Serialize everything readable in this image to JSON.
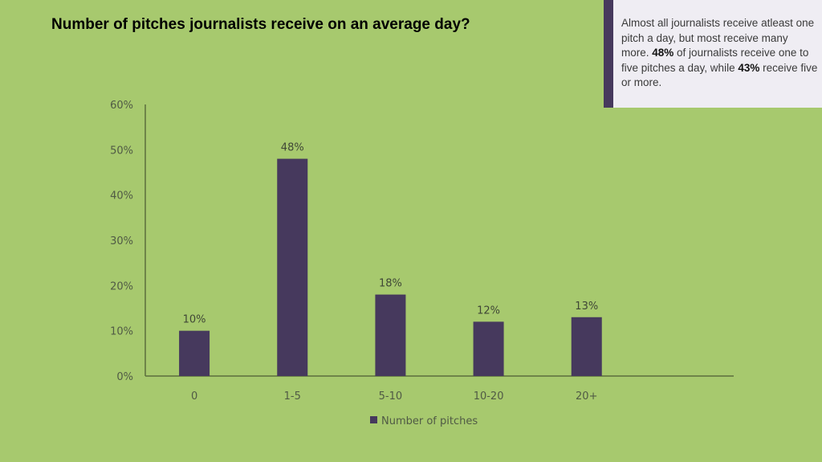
{
  "title": "Number of pitches journalists receive on an average day?",
  "note": {
    "part1": "Almost all journalists receive atleast one pitch a day, but most receive many more. ",
    "bold1": "48%",
    "part2": " of journalists receive one to five pitches a day, while ",
    "bold2": "43%",
    "part3": " receive five or more."
  },
  "colors": {
    "background": "#a7c96e",
    "bar": "#46395d",
    "note_accent": "#46395d"
  },
  "chart_data": {
    "type": "bar",
    "title": "Number of pitches journalists receive on an average day?",
    "categories": [
      "0",
      "1-5",
      "5-10",
      "10-20",
      "20+"
    ],
    "series": [
      {
        "name": "Number of pitches",
        "values": [
          10,
          48,
          18,
          12,
          13
        ]
      }
    ],
    "data_labels": [
      "10%",
      "48%",
      "18%",
      "12%",
      "13%"
    ],
    "yticks": [
      "0%",
      "10%",
      "20%",
      "30%",
      "40%",
      "50%",
      "60%"
    ],
    "ylim": [
      0,
      60
    ],
    "grid": false,
    "legend": "bottom"
  }
}
